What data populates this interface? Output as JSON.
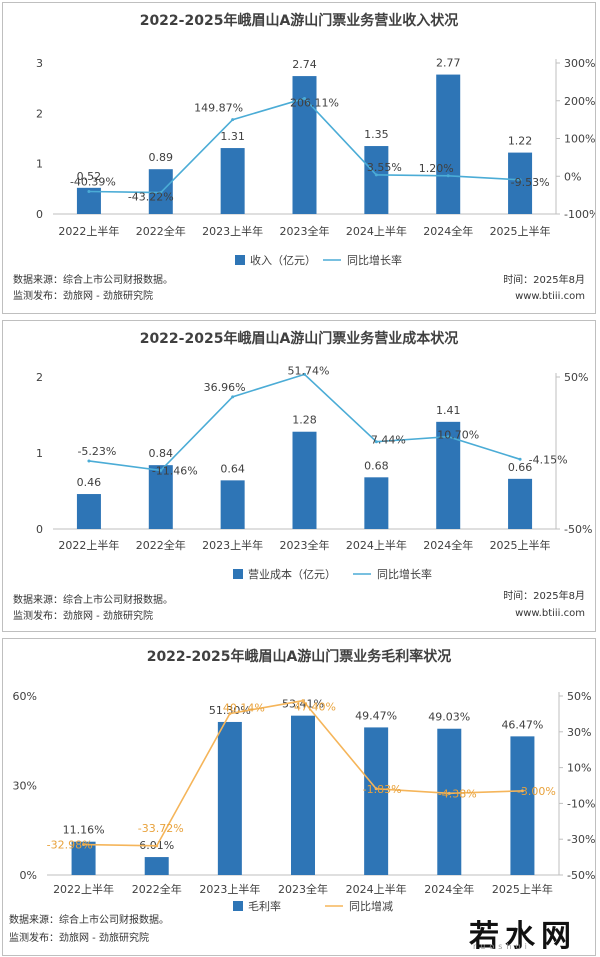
{
  "colors": {
    "bar": "#2e75b6",
    "line_blue": "#4bacd6",
    "line_orange": "#f5b55a",
    "text": "#404040",
    "axis": "#bfbfbf"
  },
  "categories": [
    "2022上半年",
    "2022全年",
    "2023上半年",
    "2023全年",
    "2024上半年",
    "2024全年",
    "2025上半年"
  ],
  "chart_data": [
    {
      "type": "bar",
      "title": "2022-2025年峨眉山A游山门票业务营业收入状况",
      "categories": [
        "2022上半年",
        "2022全年",
        "2023上半年",
        "2023全年",
        "2024上半年",
        "2024全年",
        "2025上半年"
      ],
      "series": [
        {
          "name": "收入（亿元）",
          "kind": "bar",
          "axis": "left",
          "values": [
            0.52,
            0.89,
            1.31,
            2.74,
            1.35,
            2.77,
            1.22
          ],
          "labels": [
            "0.52",
            "0.89",
            "1.31",
            "2.74",
            "1.35",
            "2.77",
            "1.22"
          ]
        },
        {
          "name": "同比增长率",
          "kind": "line",
          "axis": "right",
          "values": [
            -40.39,
            -43.22,
            149.87,
            206.11,
            3.55,
            1.2,
            -9.53
          ],
          "labels": [
            "-40.39%",
            "-43.22%",
            "149.87%",
            "206.11%",
            "3.55%",
            "1.20%",
            "-9.53%"
          ]
        }
      ],
      "ylim": [
        0,
        3
      ],
      "y2lim": [
        -100,
        300
      ],
      "yticks": [
        "0",
        "1",
        "2",
        "3"
      ],
      "y2ticks": [
        "-100%",
        "0%",
        "100%",
        "200%",
        "300%"
      ],
      "legend": "bottom"
    },
    {
      "type": "bar",
      "title": "2022-2025年峨眉山A游山门票业务营业成本状况",
      "categories": [
        "2022上半年",
        "2022全年",
        "2023上半年",
        "2023全年",
        "2024上半年",
        "2024全年",
        "2025上半年"
      ],
      "series": [
        {
          "name": "营业成本（亿元）",
          "kind": "bar",
          "axis": "left",
          "values": [
            0.46,
            0.84,
            0.64,
            1.28,
            0.68,
            1.41,
            0.66
          ],
          "labels": [
            "0.46",
            "0.84",
            "0.64",
            "1.28",
            "0.68",
            "1.41",
            "0.66"
          ]
        },
        {
          "name": "同比增长率",
          "kind": "line",
          "axis": "right",
          "values": [
            -5.23,
            -11.46,
            36.96,
            51.74,
            7.44,
            10.7,
            -4.15
          ],
          "labels": [
            "-5.23%",
            "-11.46%",
            "36.96%",
            "51.74%",
            "7.44%",
            "10.70%",
            "-4.15%"
          ]
        }
      ],
      "ylim": [
        0,
        2
      ],
      "y2lim": [
        -50,
        50
      ],
      "yticks": [
        "0",
        "1",
        "2"
      ],
      "y2ticks": [
        "-50%",
        "50%"
      ],
      "legend": "bottom"
    },
    {
      "type": "bar",
      "title": "2022-2025年峨眉山A游山门票业务毛利率状况",
      "categories": [
        "2022上半年",
        "2022全年",
        "2023上半年",
        "2023全年",
        "2024上半年",
        "2024全年",
        "2025上半年"
      ],
      "series": [
        {
          "name": "毛利率",
          "kind": "bar",
          "axis": "left",
          "values": [
            11.16,
            6.01,
            51.3,
            53.41,
            49.47,
            49.03,
            46.47
          ],
          "labels": [
            "11.16%",
            "6.01%",
            "51.30%",
            "53.41%",
            "49.47%",
            "49.03%",
            "46.47%"
          ]
        },
        {
          "name": "同比增减",
          "kind": "line",
          "axis": "right",
          "values": [
            -32.98,
            -33.72,
            40.14,
            47.4,
            -1.83,
            -4.38,
            -3.0
          ],
          "labels": [
            "-32.98%",
            "-33.72%",
            "40.14%",
            "47.40%",
            "-1.83%",
            "-4.38%",
            "-3.00%"
          ]
        }
      ],
      "ylim": [
        0,
        60
      ],
      "y2lim": [
        -50,
        50
      ],
      "yticks": [
        "0%",
        "30%",
        "60%"
      ],
      "y2ticks": [
        "-50%",
        "-30%",
        "-10%",
        "10%",
        "30%",
        "50%"
      ],
      "legend": "bottom"
    }
  ],
  "footer": {
    "source": "数据来源：综合上市公司财报数据。",
    "publisher": "监测发布：劲旅网 - 劲旅研究院",
    "time": "时间：2025年8月",
    "site": "www.btiii.com"
  },
  "watermark": {
    "text": "若水网",
    "dots": "ruoshui"
  }
}
